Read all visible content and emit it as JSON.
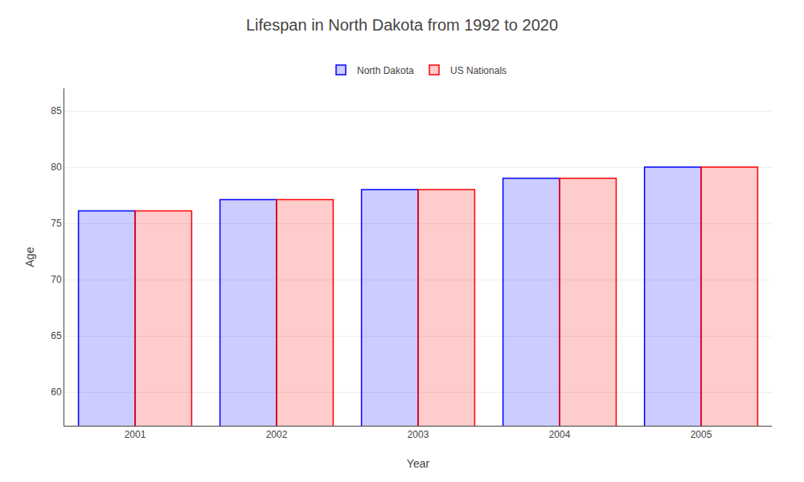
{
  "chart_data": {
    "type": "bar",
    "title": "Lifespan in North Dakota from 1992 to 2020",
    "x_label": "Year",
    "y_label": "Age",
    "categories": [
      "2001",
      "2002",
      "2003",
      "2004",
      "2005"
    ],
    "series": [
      {
        "name": "North Dakota",
        "color": "#0000ff",
        "values": [
          76.1,
          77.1,
          78.0,
          79.0,
          80.0
        ]
      },
      {
        "name": "US Nationals",
        "color": "#ff0000",
        "values": [
          76.1,
          77.1,
          78.0,
          79.0,
          80.0
        ]
      }
    ],
    "ylim": [
      57,
      87
    ],
    "yticks": [
      60,
      65,
      70,
      75,
      80,
      85
    ],
    "grid": true,
    "legend": "top"
  }
}
